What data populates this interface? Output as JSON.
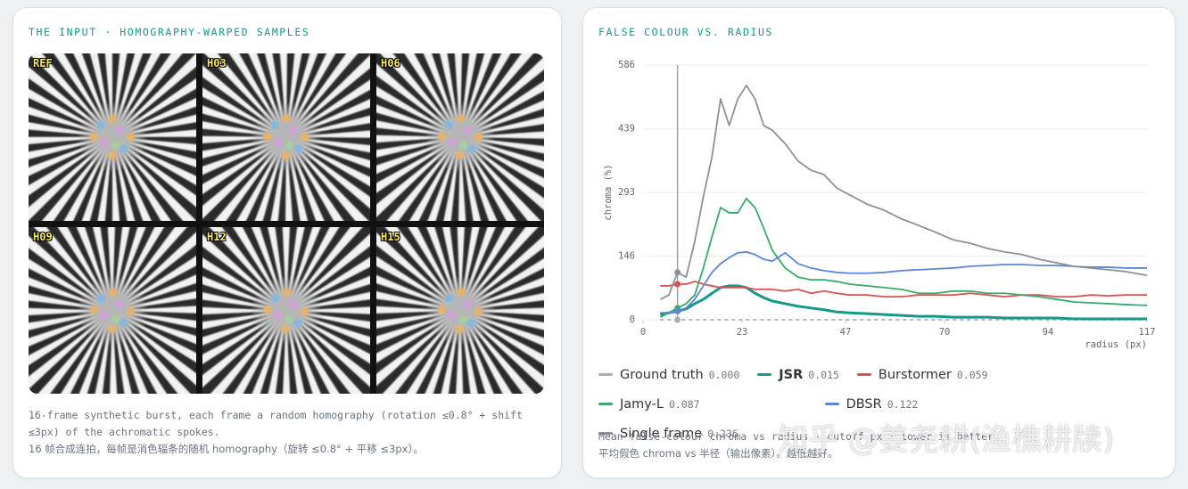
{
  "left_card": {
    "title": "THE INPUT · HOMOGRAPHY-WARPED SAMPLES",
    "frames": [
      "REF",
      "H03",
      "H06",
      "H09",
      "H12",
      "H15"
    ],
    "caption_en": "16-frame synthetic burst, each frame a random homography (rotation ≤0.8° + shift ≤3px) of the achromatic spokes.",
    "caption_zh": "16 帧合成连拍，每帧是消色辐条的随机 homography（旋转 ≤0.8° + 平移 ≤3px）。"
  },
  "right_card": {
    "caption_en": "Mean false-colour chroma vs radius · cutoff px · lower is better.",
    "caption_zh": "平均假色 chroma vs 半径（输出像素）。越低越好。"
  },
  "watermark": "知乎 @姜尧耕(渔樵耕牍)",
  "chart_data": {
    "type": "line",
    "title": "FALSE COLOUR VS. RADIUS",
    "x_label": "radius (px)",
    "y_label": "chroma (%)",
    "xlim": [
      0,
      117
    ],
    "xticks": [
      0,
      23,
      47,
      70,
      94,
      117
    ],
    "ylim": [
      0,
      586
    ],
    "yticks": [
      0,
      146,
      293,
      439,
      586
    ],
    "grid": true,
    "cursor_x": 8,
    "x": [
      4,
      6,
      8,
      10,
      12,
      14,
      16,
      18,
      20,
      22,
      24,
      26,
      28,
      30,
      33,
      36,
      39,
      42,
      45,
      48,
      52,
      56,
      60,
      64,
      68,
      72,
      76,
      80,
      84,
      88,
      92,
      96,
      100,
      104,
      108,
      112,
      117
    ],
    "series": [
      {
        "name": "Ground truth",
        "score": "0.000",
        "color": "#a9aeb6",
        "dashed": true,
        "values": [
          0,
          0,
          0,
          0,
          0,
          0,
          0,
          0,
          0,
          0,
          0,
          0,
          0,
          0,
          0,
          0,
          0,
          0,
          0,
          0,
          0,
          0,
          0,
          0,
          0,
          0,
          0,
          0,
          0,
          0,
          0,
          0,
          0,
          0,
          0,
          0,
          0
        ]
      },
      {
        "name": "JSR",
        "score": "0.015",
        "color": "#16998a",
        "bold": true,
        "values": [
          12,
          16,
          20,
          25,
          37,
          47,
          61,
          74,
          78,
          78,
          74,
          61,
          51,
          43,
          37,
          31,
          27,
          23,
          18,
          16,
          14,
          12,
          10,
          8,
          8,
          6,
          6,
          6,
          4,
          4,
          4,
          4,
          2,
          2,
          2,
          2,
          2
        ]
      },
      {
        "name": "Burstormer",
        "score": "0.059",
        "color": "#d65353",
        "values": [
          78,
          78,
          82,
          82,
          88,
          82,
          78,
          74,
          74,
          74,
          74,
          70,
          70,
          70,
          66,
          70,
          61,
          66,
          61,
          57,
          57,
          53,
          53,
          57,
          57,
          57,
          61,
          57,
          53,
          57,
          57,
          53,
          53,
          57,
          55,
          57,
          57
        ]
      },
      {
        "name": "Jamy-L",
        "score": "0.087",
        "color": "#3aaa6c",
        "values": [
          6,
          16,
          27,
          37,
          57,
          119,
          191,
          258,
          246,
          246,
          279,
          258,
          211,
          160,
          119,
          98,
          92,
          92,
          88,
          82,
          78,
          74,
          70,
          61,
          61,
          66,
          66,
          61,
          61,
          57,
          53,
          47,
          41,
          39,
          37,
          35,
          33
        ]
      },
      {
        "name": "DBSR",
        "score": "0.122",
        "color": "#5b86d6",
        "values": [
          16,
          16,
          20,
          27,
          47,
          78,
          109,
          129,
          143,
          154,
          156,
          150,
          139,
          135,
          154,
          129,
          119,
          113,
          109,
          107,
          107,
          109,
          113,
          115,
          117,
          119,
          123,
          125,
          127,
          127,
          125,
          125,
          123,
          121,
          121,
          119,
          119
        ]
      },
      {
        "name": "Single frame",
        "score": "0.236",
        "color": "#8c9199",
        "values": [
          47,
          57,
          109,
          98,
          180,
          283,
          375,
          508,
          447,
          508,
          539,
          508,
          447,
          436,
          405,
          365,
          344,
          334,
          303,
          287,
          266,
          252,
          232,
          217,
          201,
          184,
          176,
          164,
          156,
          150,
          139,
          131,
          123,
          119,
          115,
          111,
          102
        ]
      }
    ]
  }
}
